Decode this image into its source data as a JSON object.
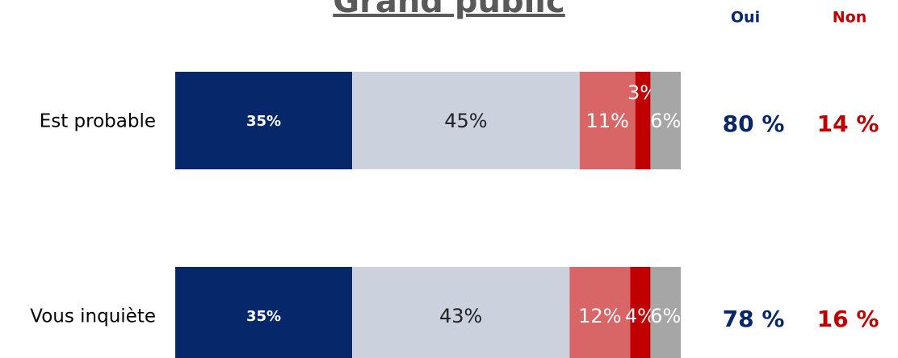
{
  "chart_data": {
    "type": "stacked-bar-horizontal",
    "title": "Grand public",
    "categories": [
      "Est probable",
      "Vous inquiète"
    ],
    "series": [
      {
        "color": "#062769",
        "values": [
          35,
          35
        ],
        "value_labels": [
          "35%",
          "35%"
        ]
      },
      {
        "color": "#ccd1de",
        "values": [
          45,
          43
        ],
        "value_labels": [
          "45%",
          "43%"
        ]
      },
      {
        "color": "#d96666",
        "values": [
          11,
          12
        ],
        "value_labels": [
          "11%",
          "12%"
        ]
      },
      {
        "color": "#c00000",
        "values": [
          3,
          4
        ],
        "value_labels": [
          "3%",
          "4%"
        ]
      },
      {
        "color": "#a6a6a6",
        "values": [
          6,
          6
        ],
        "value_labels": [
          "6%",
          "6%"
        ]
      }
    ],
    "xlim": [
      0,
      100
    ],
    "totals": [
      {
        "name": "Oui",
        "color": "#062769",
        "values": [
          80,
          78
        ],
        "value_labels": [
          "80 %",
          "78 %"
        ]
      },
      {
        "name": "Non",
        "color": "#c00000",
        "values": [
          14,
          16
        ],
        "value_labels": [
          "14 %",
          "16 %"
        ]
      }
    ]
  }
}
